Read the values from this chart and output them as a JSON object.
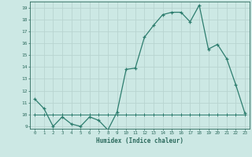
{
  "xlabel": "Humidex (Indice chaleur)",
  "x_values": [
    0,
    1,
    2,
    3,
    4,
    5,
    6,
    7,
    8,
    9,
    10,
    11,
    12,
    13,
    14,
    15,
    16,
    17,
    18,
    19,
    20,
    21,
    22,
    23
  ],
  "line1_y": [
    11.3,
    10.5,
    9.0,
    9.8,
    9.2,
    9.0,
    9.8,
    9.5,
    8.7,
    10.2,
    13.8,
    13.9,
    16.5,
    17.5,
    18.4,
    18.6,
    18.6,
    17.8,
    19.2,
    15.5,
    15.9,
    14.7,
    12.5,
    10.1
  ],
  "line2_y": [
    10.0,
    10.0,
    10.0,
    10.0,
    10.0,
    10.0,
    10.0,
    10.0,
    10.0,
    10.0,
    10.0,
    10.0,
    10.0,
    10.0,
    10.0,
    10.0,
    10.0,
    10.0,
    10.0,
    10.0,
    10.0,
    10.0,
    10.0,
    10.0
  ],
  "line_color": "#2d7d6e",
  "bg_color": "#cce8e4",
  "grid_color_major": "#b8d4d0",
  "grid_color_minor": "#d4e8e4",
  "axis_color": "#2d6b5e",
  "ylim": [
    8.8,
    19.5
  ],
  "xlim": [
    -0.5,
    23.5
  ],
  "yticks": [
    9,
    10,
    11,
    12,
    13,
    14,
    15,
    16,
    17,
    18,
    19
  ],
  "xticks": [
    0,
    1,
    2,
    3,
    4,
    5,
    6,
    7,
    8,
    9,
    10,
    11,
    12,
    13,
    14,
    15,
    16,
    17,
    18,
    19,
    20,
    21,
    22,
    23
  ]
}
